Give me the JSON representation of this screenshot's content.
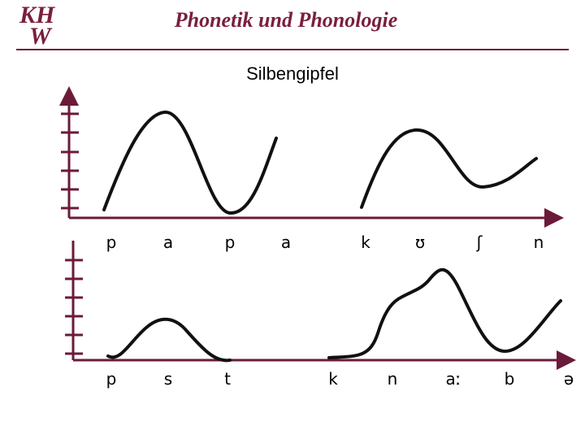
{
  "logo": {
    "line1": "KH",
    "line2": "W"
  },
  "header": {
    "title": "Phonetik und Phonologie"
  },
  "slide": {
    "title": "Silbengipfel",
    "rows": [
      [
        "p",
        "a",
        "p",
        "a",
        "k",
        "ʊ",
        "ʃ",
        "n"
      ],
      [
        "p",
        "s",
        "t",
        "k",
        "n",
        "aː",
        "b",
        "ə"
      ]
    ]
  }
}
